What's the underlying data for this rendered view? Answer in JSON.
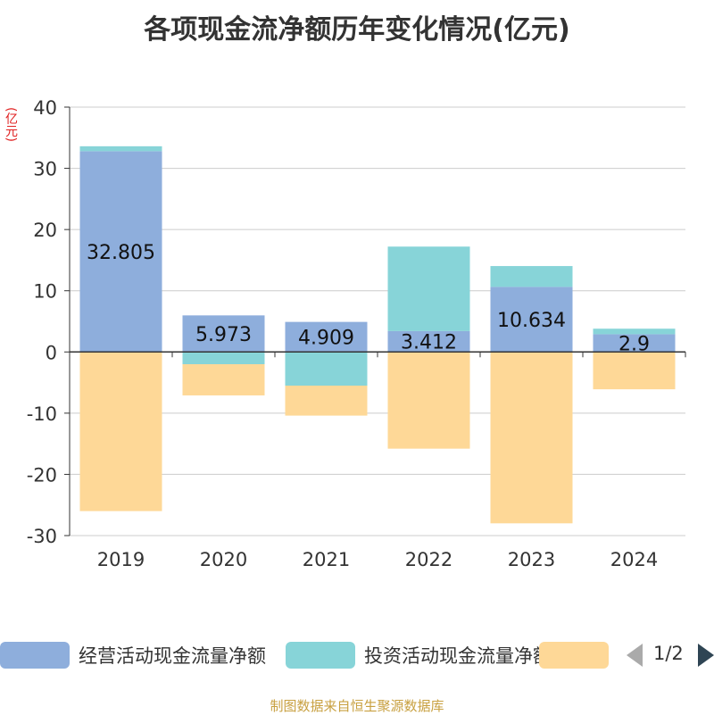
{
  "chart_data": {
    "type": "bar",
    "stacked": true,
    "title": "各项现金流净额历年变化情况(亿元)",
    "ylabel": "(亿元)",
    "xlabel": "",
    "ylim": [
      -30,
      40
    ],
    "yticks": [
      40,
      30,
      20,
      10,
      0,
      -10,
      -20,
      -30
    ],
    "categories": [
      "2019",
      "2020",
      "2021",
      "2022",
      "2023",
      "2024"
    ],
    "series": [
      {
        "name": "经营活动现金流量净额",
        "color": "#8eaedc",
        "values": [
          32.805,
          5.973,
          4.909,
          3.412,
          10.634,
          2.9
        ],
        "labels": [
          "32.805",
          "5.973",
          "4.909",
          "3.412",
          "10.634",
          "2.9"
        ]
      },
      {
        "name": "投资活动现金流量净额",
        "color": "#87d4d8",
        "values": [
          0.8,
          -2.0,
          -5.5,
          13.8,
          3.4,
          0.9
        ]
      },
      {
        "name": "",
        "color": "#fed897",
        "values": [
          -26.0,
          -5.1,
          -4.9,
          -15.8,
          -28.0,
          -6.1
        ]
      }
    ],
    "legend": {
      "page": "1/2",
      "position": "bottom"
    }
  },
  "source_text": "制图数据来自恒生聚源数据库"
}
